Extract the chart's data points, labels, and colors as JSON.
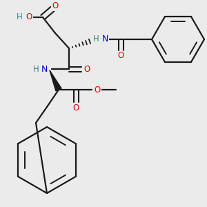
{
  "background_color": "#ebebeb",
  "bond_color": "#1a1a1a",
  "atom_colors": {
    "O": "#dd0000",
    "N": "#0000cc",
    "H": "#3a8888",
    "C": "#1a1a1a"
  },
  "figsize": [
    3.0,
    3.0
  ],
  "dpi": 100
}
